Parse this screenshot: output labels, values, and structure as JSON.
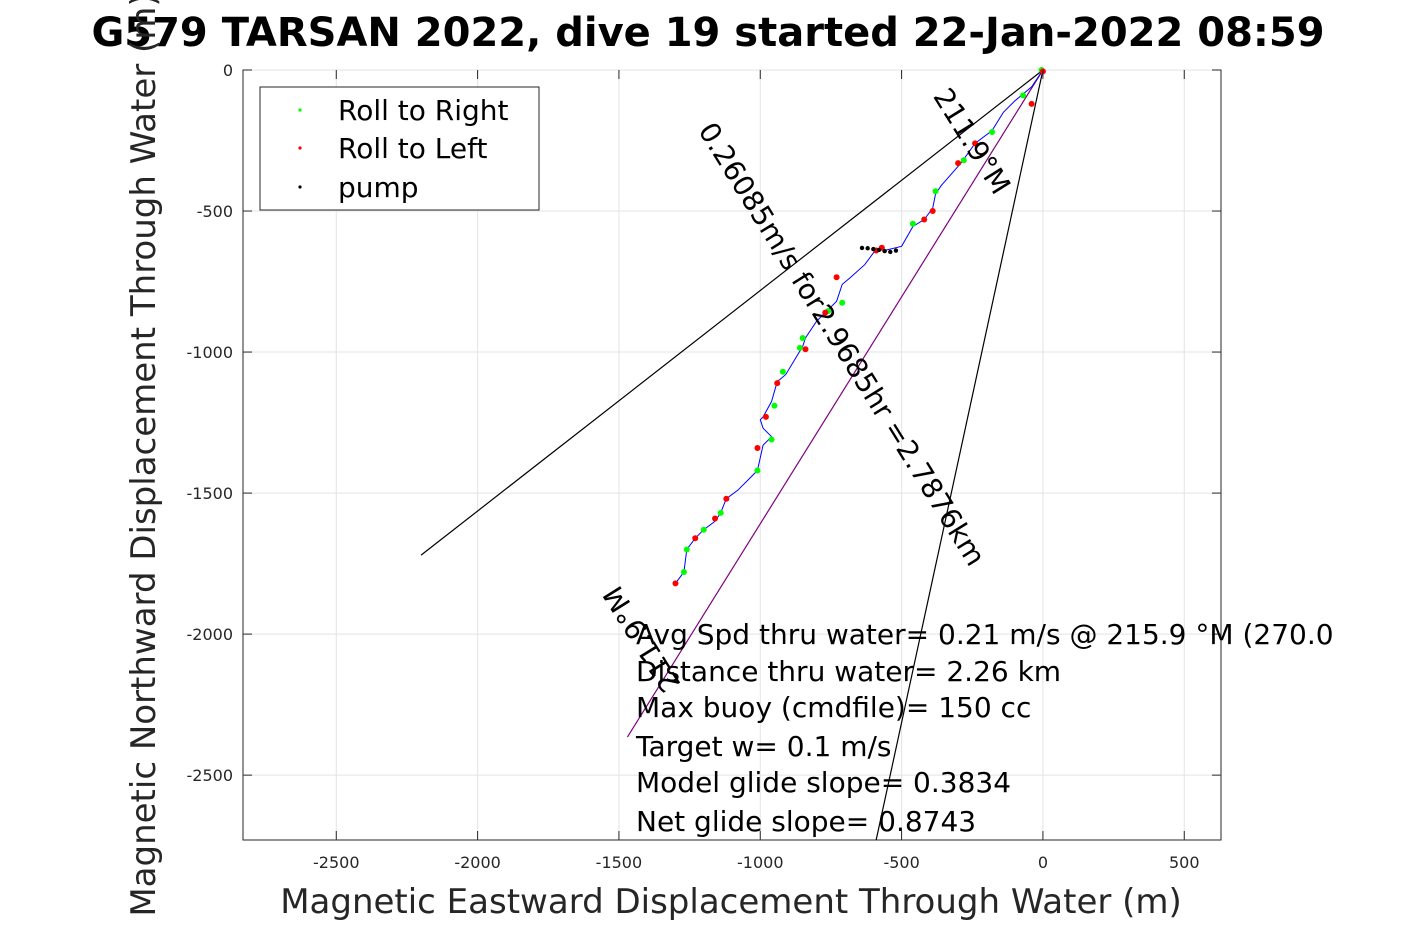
{
  "chart_data": {
    "type": "scatter",
    "title": "G579 TARSAN 2022, dive 19 started 22-Jan-2022 08:59",
    "xlabel": "Magnetic Eastward Displacement Through Water (m)",
    "ylabel": "Magnetic Northward Displacement Through Water (m)",
    "xlim": [
      -2830,
      630
    ],
    "ylim": [
      -2730,
      0
    ],
    "xticks": [
      -2500,
      -2000,
      -1500,
      -1000,
      -500,
      0,
      500
    ],
    "yticks": [
      0,
      -500,
      -1000,
      -1500,
      -2000,
      -2500
    ],
    "grid": true,
    "legend": {
      "placement": "top-left",
      "entries": [
        {
          "label": "Roll to Right",
          "color": "#00ff00"
        },
        {
          "label": "Roll to Left",
          "color": "#ff0000"
        },
        {
          "label": "pump",
          "color": "#000000"
        }
      ]
    },
    "track_color": "#0000ff",
    "track": [
      [
        0,
        0
      ],
      [
        -40,
        -60
      ],
      [
        -100,
        -110
      ],
      [
        -140,
        -150
      ],
      [
        -180,
        -215
      ],
      [
        -240,
        -260
      ],
      [
        -290,
        -330
      ],
      [
        -360,
        -410
      ],
      [
        -380,
        -440
      ],
      [
        -390,
        -490
      ],
      [
        -420,
        -530
      ],
      [
        -460,
        -555
      ],
      [
        -500,
        -625
      ],
      [
        -560,
        -640
      ],
      [
        -590,
        -635
      ],
      [
        -630,
        -690
      ],
      [
        -680,
        -735
      ],
      [
        -710,
        -760
      ],
      [
        -730,
        -820
      ],
      [
        -760,
        -850
      ],
      [
        -800,
        -890
      ],
      [
        -840,
        -950
      ],
      [
        -850,
        -980
      ],
      [
        -880,
        -1030
      ],
      [
        -910,
        -1080
      ],
      [
        -940,
        -1105
      ],
      [
        -960,
        -1175
      ],
      [
        -990,
        -1230
      ],
      [
        -1000,
        -1240
      ],
      [
        -990,
        -1270
      ],
      [
        -960,
        -1300
      ],
      [
        -990,
        -1330
      ],
      [
        -1010,
        -1420
      ],
      [
        -1040,
        -1450
      ],
      [
        -1080,
        -1490
      ],
      [
        -1120,
        -1520
      ],
      [
        -1140,
        -1570
      ],
      [
        -1160,
        -1600
      ],
      [
        -1200,
        -1630
      ],
      [
        -1230,
        -1660
      ],
      [
        -1260,
        -1700
      ],
      [
        -1270,
        -1780
      ],
      [
        -1300,
        -1820
      ]
    ],
    "series": [
      {
        "name": "Roll to Right",
        "color": "#00ff00",
        "points": [
          [
            -5,
            0
          ],
          [
            -70,
            -90
          ],
          [
            -180,
            -220
          ],
          [
            -280,
            -320
          ],
          [
            -380,
            -430
          ],
          [
            -460,
            -545
          ],
          [
            -710,
            -825
          ],
          [
            -760,
            -855
          ],
          [
            -850,
            -950
          ],
          [
            -860,
            -985
          ],
          [
            -920,
            -1070
          ],
          [
            -950,
            -1190
          ],
          [
            -960,
            -1310
          ],
          [
            -1010,
            -1420
          ],
          [
            -1140,
            -1570
          ],
          [
            -1200,
            -1630
          ],
          [
            -1260,
            -1700
          ],
          [
            -1270,
            -1780
          ]
        ]
      },
      {
        "name": "Roll to Left",
        "color": "#ff0000",
        "points": [
          [
            0,
            -5
          ],
          [
            -40,
            -120
          ],
          [
            -240,
            -260
          ],
          [
            -300,
            -330
          ],
          [
            -390,
            -500
          ],
          [
            -420,
            -530
          ],
          [
            -570,
            -630
          ],
          [
            -590,
            -640
          ],
          [
            -730,
            -735
          ],
          [
            -770,
            -860
          ],
          [
            -840,
            -990
          ],
          [
            -940,
            -1110
          ],
          [
            -980,
            -1230
          ],
          [
            -1010,
            -1340
          ],
          [
            -1120,
            -1520
          ],
          [
            -1160,
            -1590
          ],
          [
            -1230,
            -1660
          ],
          [
            -1300,
            -1820
          ]
        ]
      },
      {
        "name": "pump",
        "color": "#000000",
        "points": [
          [
            -520,
            -640
          ],
          [
            -540,
            -645
          ],
          [
            -560,
            -642
          ],
          [
            -580,
            -638
          ],
          [
            -600,
            -635
          ],
          [
            -620,
            -632
          ],
          [
            -640,
            -631
          ]
        ]
      }
    ],
    "lines": [
      {
        "color": "#000000",
        "from": [
          0,
          0
        ],
        "to": [
          -2200,
          -1720
        ]
      },
      {
        "color": "#000000",
        "from": [
          0,
          0
        ],
        "to": [
          -590,
          -2730
        ]
      },
      {
        "color": "#800080",
        "from": [
          0,
          0
        ],
        "to": [
          -1470,
          -2365
        ]
      }
    ],
    "rotated_labels": [
      {
        "text": "211.9°M",
        "anchor": [
          -280,
          -270
        ],
        "angle": 58.1
      },
      {
        "text": "0.26085m/s for2.9685hr =2.7876km",
        "anchor": [
          -740,
          -990
        ],
        "angle": 58.1
      },
      {
        "text": "211.9°M",
        "anchor": [
          -1390,
          -2000
        ],
        "angle": -121.9
      }
    ],
    "annotations": [
      "Avg Spd thru water=  0.21 m/s @ 215.9 °M (270.0",
      "Distance thru water=  2.26 km",
      "Max buoy (cmdfile)= 150 cc",
      "Target w= 0.1 m/s",
      "Model glide slope= 0.3834",
      "Net glide slope= 0.8743"
    ]
  }
}
